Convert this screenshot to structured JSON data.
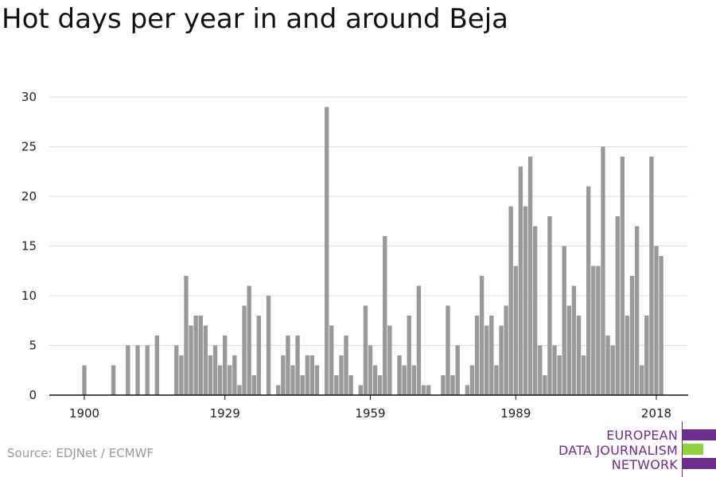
{
  "title": "Hot days per year in and around Beja",
  "source": "Source: EDJNet / ECMWF",
  "logo": {
    "lines": [
      "EUROPEAN",
      "DATA JOURNALISM",
      "NETWORK"
    ],
    "colors": {
      "purple": "#6d2d8a",
      "green": "#8fd13f"
    }
  },
  "chart_data": {
    "type": "bar",
    "title": "Hot days per year in and around Beja",
    "xlabel": "",
    "ylabel": "",
    "x_start": 1900,
    "x_end": 2020,
    "x_ticks": [
      1900,
      1929,
      1959,
      1989,
      2018
    ],
    "y_ticks": [
      0,
      5,
      10,
      15,
      20,
      25,
      30
    ],
    "ylim": [
      0,
      30
    ],
    "grid": true,
    "bar_color": "#999999",
    "values": [
      3,
      0,
      0,
      0,
      0,
      0,
      3,
      0,
      0,
      5,
      0,
      5,
      0,
      5,
      0,
      6,
      0,
      0,
      0,
      5,
      4,
      12,
      7,
      8,
      8,
      7,
      4,
      5,
      3,
      6,
      3,
      4,
      1,
      9,
      11,
      2,
      8,
      0,
      10,
      0,
      1,
      4,
      6,
      3,
      6,
      2,
      4,
      4,
      3,
      0,
      29,
      7,
      2,
      4,
      6,
      2,
      0,
      1,
      9,
      5,
      3,
      2,
      16,
      7,
      0,
      4,
      3,
      8,
      3,
      11,
      1,
      1,
      0,
      0,
      2,
      9,
      2,
      5,
      0,
      1,
      3,
      8,
      12,
      7,
      8,
      3,
      7,
      9,
      19,
      13,
      23,
      19,
      24,
      17,
      5,
      2,
      18,
      5,
      4,
      15,
      9,
      11,
      8,
      4,
      21,
      13,
      13,
      25,
      6,
      5,
      18,
      24,
      8,
      12,
      17,
      3,
      8,
      24,
      15,
      14,
      0
    ]
  }
}
